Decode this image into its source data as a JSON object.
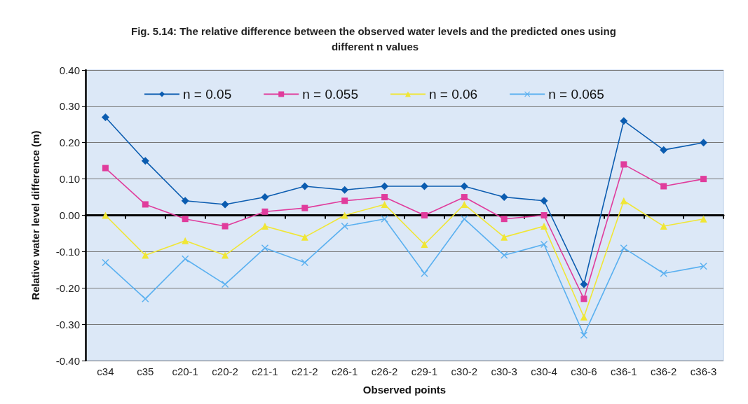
{
  "chart_data": {
    "type": "line",
    "title": "Fig. 5.14: The relative difference between the observed water levels and the predicted ones using different n values",
    "xlabel": "Observed points",
    "ylabel": "Relative water level difference (m)",
    "categories": [
      "c34",
      "c35",
      "c20-1",
      "c20-2",
      "c21-1",
      "c21-2",
      "c26-1",
      "c26-2",
      "c29-1",
      "c30-2",
      "c30-3",
      "c30-4",
      "c30-6",
      "c36-1",
      "c36-2",
      "c36-3"
    ],
    "series": [
      {
        "name": "n = 0.05",
        "color": "#0b5cb0",
        "marker": "diamond",
        "values": [
          0.27,
          0.15,
          0.04,
          0.03,
          0.05,
          0.08,
          0.07,
          0.08,
          0.08,
          0.08,
          0.05,
          0.04,
          -0.19,
          0.26,
          0.18,
          0.2
        ]
      },
      {
        "name": "n = 0.055",
        "color": "#e03c9c",
        "marker": "square",
        "values": [
          0.13,
          0.03,
          -0.01,
          -0.03,
          0.01,
          0.02,
          0.04,
          0.05,
          0.0,
          0.05,
          -0.01,
          0.0,
          -0.23,
          0.14,
          0.08,
          0.1
        ]
      },
      {
        "name": "n = 0.06",
        "color": "#f0e636",
        "marker": "triangle",
        "values": [
          0.0,
          -0.11,
          -0.07,
          -0.11,
          -0.03,
          -0.06,
          0.0,
          0.03,
          -0.08,
          0.03,
          -0.06,
          -0.03,
          -0.28,
          0.04,
          -0.03,
          -0.01
        ]
      },
      {
        "name": "n = 0.065",
        "color": "#5ab0f0",
        "marker": "cross",
        "values": [
          -0.13,
          -0.23,
          -0.12,
          -0.19,
          -0.09,
          -0.13,
          -0.03,
          -0.01,
          -0.16,
          -0.01,
          -0.11,
          -0.08,
          -0.33,
          -0.09,
          -0.16,
          -0.14
        ]
      }
    ],
    "ylim": [
      -0.4,
      0.4
    ],
    "yticks": [
      {
        "value": -0.4,
        "label": "-0.40"
      },
      {
        "value": -0.3,
        "label": "-0.30"
      },
      {
        "value": -0.2,
        "label": "-0.20"
      },
      {
        "value": -0.1,
        "label": "-0.10"
      },
      {
        "value": 0,
        "label": "0.00"
      },
      {
        "value": 0.1,
        "label": "0.10"
      },
      {
        "value": 0.2,
        "label": "0.20"
      },
      {
        "value": 0.3,
        "label": "0.30"
      },
      {
        "value": 0.4,
        "label": "0.40"
      }
    ],
    "grid": "y",
    "legend": "top",
    "line_style": "solid"
  }
}
